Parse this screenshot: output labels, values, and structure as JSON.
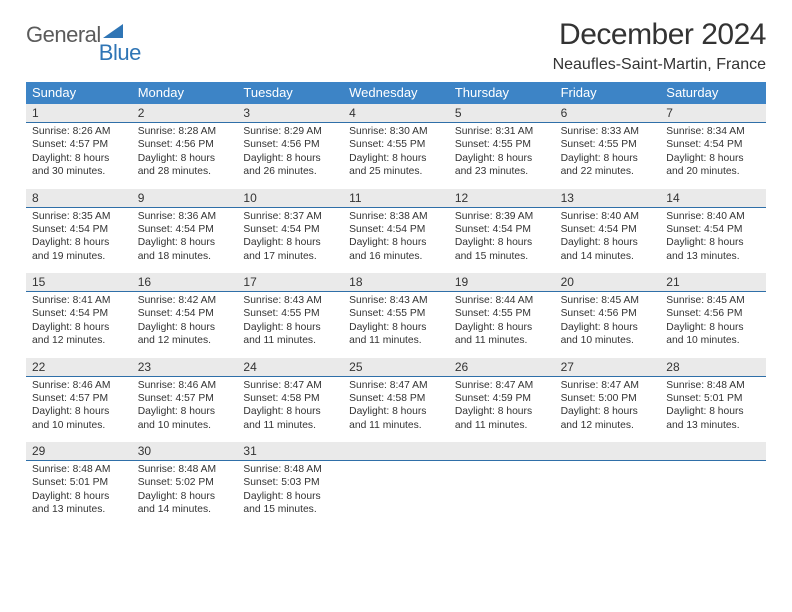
{
  "brand": {
    "part1": "General",
    "part2": "Blue"
  },
  "title": "December 2024",
  "location": "Neaufles-Saint-Martin, France",
  "colors": {
    "header_bg": "#3d84c6",
    "rule": "#2f6fa8",
    "daynum_bg": "#eaeaea",
    "text": "#333333",
    "brand_blue": "#2f75b5",
    "brand_gray": "#5b5b5b",
    "page_bg": "#ffffff"
  },
  "typography": {
    "title_fontsize": 30,
    "subtitle_fontsize": 16,
    "dow_fontsize": 13,
    "daynum_fontsize": 12,
    "body_fontsize": 10.3
  },
  "day_names": [
    "Sunday",
    "Monday",
    "Tuesday",
    "Wednesday",
    "Thursday",
    "Friday",
    "Saturday"
  ],
  "weeks": [
    [
      {
        "n": "1",
        "sr": "Sunrise: 8:26 AM",
        "ss": "Sunset: 4:57 PM",
        "d1": "Daylight: 8 hours",
        "d2": "and 30 minutes."
      },
      {
        "n": "2",
        "sr": "Sunrise: 8:28 AM",
        "ss": "Sunset: 4:56 PM",
        "d1": "Daylight: 8 hours",
        "d2": "and 28 minutes."
      },
      {
        "n": "3",
        "sr": "Sunrise: 8:29 AM",
        "ss": "Sunset: 4:56 PM",
        "d1": "Daylight: 8 hours",
        "d2": "and 26 minutes."
      },
      {
        "n": "4",
        "sr": "Sunrise: 8:30 AM",
        "ss": "Sunset: 4:55 PM",
        "d1": "Daylight: 8 hours",
        "d2": "and 25 minutes."
      },
      {
        "n": "5",
        "sr": "Sunrise: 8:31 AM",
        "ss": "Sunset: 4:55 PM",
        "d1": "Daylight: 8 hours",
        "d2": "and 23 minutes."
      },
      {
        "n": "6",
        "sr": "Sunrise: 8:33 AM",
        "ss": "Sunset: 4:55 PM",
        "d1": "Daylight: 8 hours",
        "d2": "and 22 minutes."
      },
      {
        "n": "7",
        "sr": "Sunrise: 8:34 AM",
        "ss": "Sunset: 4:54 PM",
        "d1": "Daylight: 8 hours",
        "d2": "and 20 minutes."
      }
    ],
    [
      {
        "n": "8",
        "sr": "Sunrise: 8:35 AM",
        "ss": "Sunset: 4:54 PM",
        "d1": "Daylight: 8 hours",
        "d2": "and 19 minutes."
      },
      {
        "n": "9",
        "sr": "Sunrise: 8:36 AM",
        "ss": "Sunset: 4:54 PM",
        "d1": "Daylight: 8 hours",
        "d2": "and 18 minutes."
      },
      {
        "n": "10",
        "sr": "Sunrise: 8:37 AM",
        "ss": "Sunset: 4:54 PM",
        "d1": "Daylight: 8 hours",
        "d2": "and 17 minutes."
      },
      {
        "n": "11",
        "sr": "Sunrise: 8:38 AM",
        "ss": "Sunset: 4:54 PM",
        "d1": "Daylight: 8 hours",
        "d2": "and 16 minutes."
      },
      {
        "n": "12",
        "sr": "Sunrise: 8:39 AM",
        "ss": "Sunset: 4:54 PM",
        "d1": "Daylight: 8 hours",
        "d2": "and 15 minutes."
      },
      {
        "n": "13",
        "sr": "Sunrise: 8:40 AM",
        "ss": "Sunset: 4:54 PM",
        "d1": "Daylight: 8 hours",
        "d2": "and 14 minutes."
      },
      {
        "n": "14",
        "sr": "Sunrise: 8:40 AM",
        "ss": "Sunset: 4:54 PM",
        "d1": "Daylight: 8 hours",
        "d2": "and 13 minutes."
      }
    ],
    [
      {
        "n": "15",
        "sr": "Sunrise: 8:41 AM",
        "ss": "Sunset: 4:54 PM",
        "d1": "Daylight: 8 hours",
        "d2": "and 12 minutes."
      },
      {
        "n": "16",
        "sr": "Sunrise: 8:42 AM",
        "ss": "Sunset: 4:54 PM",
        "d1": "Daylight: 8 hours",
        "d2": "and 12 minutes."
      },
      {
        "n": "17",
        "sr": "Sunrise: 8:43 AM",
        "ss": "Sunset: 4:55 PM",
        "d1": "Daylight: 8 hours",
        "d2": "and 11 minutes."
      },
      {
        "n": "18",
        "sr": "Sunrise: 8:43 AM",
        "ss": "Sunset: 4:55 PM",
        "d1": "Daylight: 8 hours",
        "d2": "and 11 minutes."
      },
      {
        "n": "19",
        "sr": "Sunrise: 8:44 AM",
        "ss": "Sunset: 4:55 PM",
        "d1": "Daylight: 8 hours",
        "d2": "and 11 minutes."
      },
      {
        "n": "20",
        "sr": "Sunrise: 8:45 AM",
        "ss": "Sunset: 4:56 PM",
        "d1": "Daylight: 8 hours",
        "d2": "and 10 minutes."
      },
      {
        "n": "21",
        "sr": "Sunrise: 8:45 AM",
        "ss": "Sunset: 4:56 PM",
        "d1": "Daylight: 8 hours",
        "d2": "and 10 minutes."
      }
    ],
    [
      {
        "n": "22",
        "sr": "Sunrise: 8:46 AM",
        "ss": "Sunset: 4:57 PM",
        "d1": "Daylight: 8 hours",
        "d2": "and 10 minutes."
      },
      {
        "n": "23",
        "sr": "Sunrise: 8:46 AM",
        "ss": "Sunset: 4:57 PM",
        "d1": "Daylight: 8 hours",
        "d2": "and 10 minutes."
      },
      {
        "n": "24",
        "sr": "Sunrise: 8:47 AM",
        "ss": "Sunset: 4:58 PM",
        "d1": "Daylight: 8 hours",
        "d2": "and 11 minutes."
      },
      {
        "n": "25",
        "sr": "Sunrise: 8:47 AM",
        "ss": "Sunset: 4:58 PM",
        "d1": "Daylight: 8 hours",
        "d2": "and 11 minutes."
      },
      {
        "n": "26",
        "sr": "Sunrise: 8:47 AM",
        "ss": "Sunset: 4:59 PM",
        "d1": "Daylight: 8 hours",
        "d2": "and 11 minutes."
      },
      {
        "n": "27",
        "sr": "Sunrise: 8:47 AM",
        "ss": "Sunset: 5:00 PM",
        "d1": "Daylight: 8 hours",
        "d2": "and 12 minutes."
      },
      {
        "n": "28",
        "sr": "Sunrise: 8:48 AM",
        "ss": "Sunset: 5:01 PM",
        "d1": "Daylight: 8 hours",
        "d2": "and 13 minutes."
      }
    ],
    [
      {
        "n": "29",
        "sr": "Sunrise: 8:48 AM",
        "ss": "Sunset: 5:01 PM",
        "d1": "Daylight: 8 hours",
        "d2": "and 13 minutes."
      },
      {
        "n": "30",
        "sr": "Sunrise: 8:48 AM",
        "ss": "Sunset: 5:02 PM",
        "d1": "Daylight: 8 hours",
        "d2": "and 14 minutes."
      },
      {
        "n": "31",
        "sr": "Sunrise: 8:48 AM",
        "ss": "Sunset: 5:03 PM",
        "d1": "Daylight: 8 hours",
        "d2": "and 15 minutes."
      },
      {
        "n": "",
        "sr": "",
        "ss": "",
        "d1": "",
        "d2": ""
      },
      {
        "n": "",
        "sr": "",
        "ss": "",
        "d1": "",
        "d2": ""
      },
      {
        "n": "",
        "sr": "",
        "ss": "",
        "d1": "",
        "d2": ""
      },
      {
        "n": "",
        "sr": "",
        "ss": "",
        "d1": "",
        "d2": ""
      }
    ]
  ]
}
